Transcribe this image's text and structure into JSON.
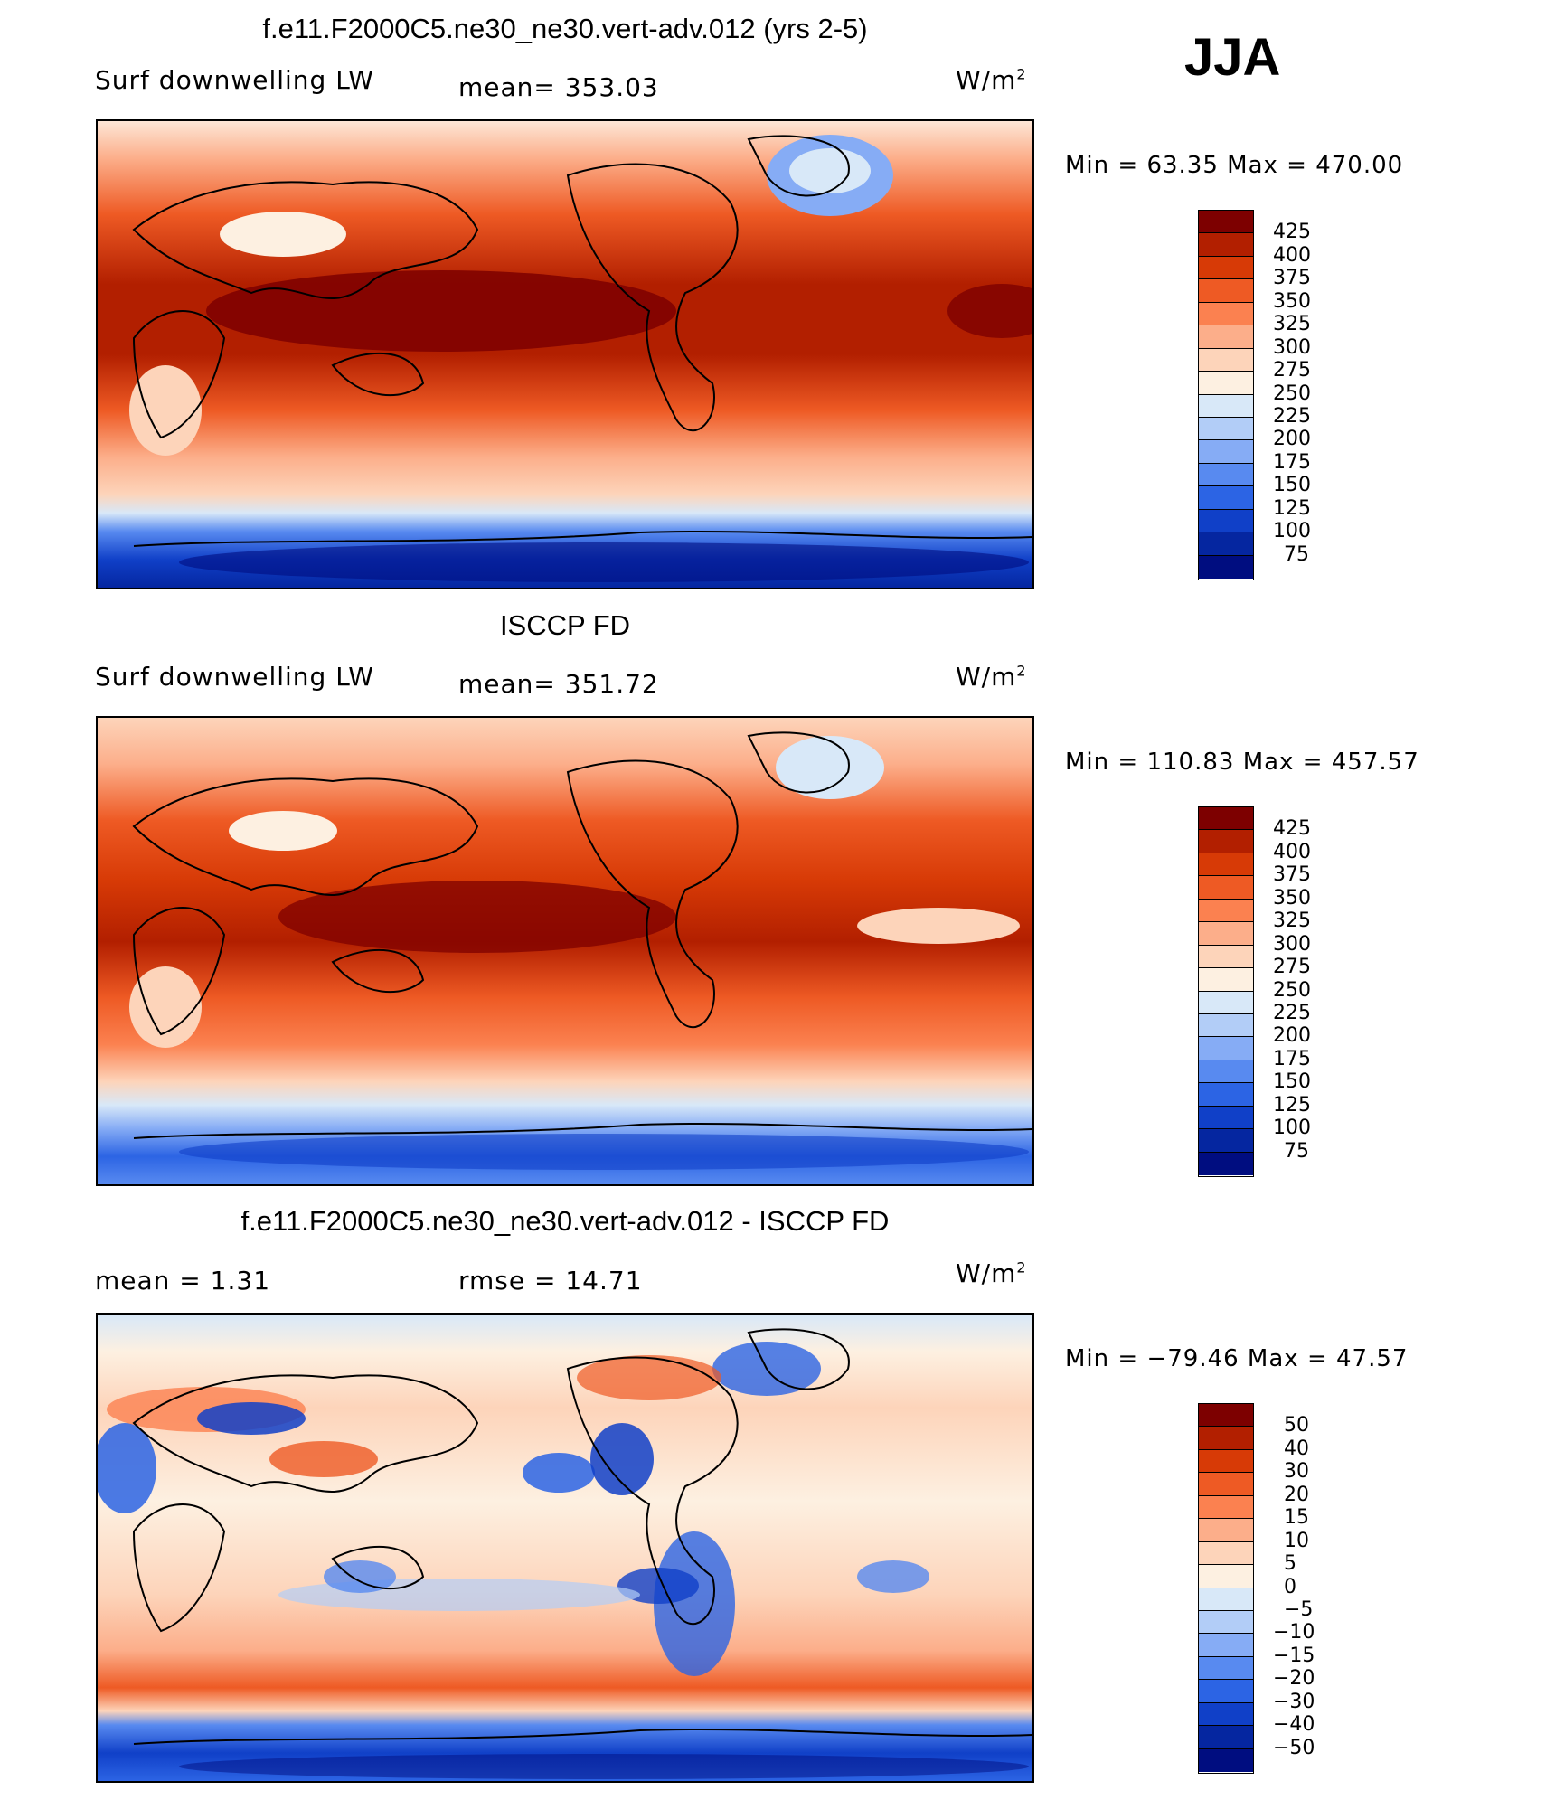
{
  "season": "JJA",
  "panels": [
    {
      "title": "f.e11.F2000C5.ne30_ne30.vert-adv.012 (yrs 2-5)",
      "left_label": "Surf  downwelling  LW",
      "center_label": "mean=  353.03",
      "unit": "W/m",
      "unit_sup": "2",
      "minmax": "Min  =    63.35  Max  =  470.00",
      "colorbar_labels": [
        "425",
        "400",
        "375",
        "350",
        "325",
        "300",
        "275",
        "250",
        "225",
        "200",
        "175",
        "150",
        "125",
        "100",
        "75"
      ],
      "colors": [
        "#7d0000",
        "#b21f00",
        "#d73a06",
        "#ee5a24",
        "#fb8150",
        "#fcae8a",
        "#fdd4ba",
        "#fdf0e1",
        "#d8e8f8",
        "#b2cdf7",
        "#86acf5",
        "#588af0",
        "#2c64e4",
        "#1040c8",
        "#0526a0",
        "#000d80"
      ]
    },
    {
      "title": "ISCCP FD",
      "left_label": "Surf  downwelling  LW",
      "center_label": "mean=  351.72",
      "unit": "W/m",
      "unit_sup": "2",
      "minmax": "Min  =  110.83  Max  =  457.57",
      "colorbar_labels": [
        "425",
        "400",
        "375",
        "350",
        "325",
        "300",
        "275",
        "250",
        "225",
        "200",
        "175",
        "150",
        "125",
        "100",
        "75"
      ],
      "colors": [
        "#7d0000",
        "#b21f00",
        "#d73a06",
        "#ee5a24",
        "#fb8150",
        "#fcae8a",
        "#fdd4ba",
        "#fdf0e1",
        "#d8e8f8",
        "#b2cdf7",
        "#86acf5",
        "#588af0",
        "#2c64e4",
        "#1040c8",
        "#0526a0",
        "#000d80"
      ]
    },
    {
      "title": "f.e11.F2000C5.ne30_ne30.vert-adv.012 - ISCCP FD",
      "left_label": "mean  =      1.31",
      "center_label": "rmse  =    14.71",
      "unit": "W/m",
      "unit_sup": "2",
      "minmax": "Min  =  −79.46  Max  =    47.57",
      "colorbar_labels": [
        "50",
        "40",
        "30",
        "20",
        "15",
        "10",
        "5",
        "0",
        "−5",
        "−10",
        "−15",
        "−20",
        "−30",
        "−40",
        "−50"
      ],
      "colors": [
        "#7d0000",
        "#b21f00",
        "#d73a06",
        "#ee5a24",
        "#fb8150",
        "#fcae8a",
        "#fdd4ba",
        "#fdf0e1",
        "#d8e8f8",
        "#b2cdf7",
        "#86acf5",
        "#588af0",
        "#2c64e4",
        "#1040c8",
        "#0526a0",
        "#000d80"
      ]
    }
  ]
}
